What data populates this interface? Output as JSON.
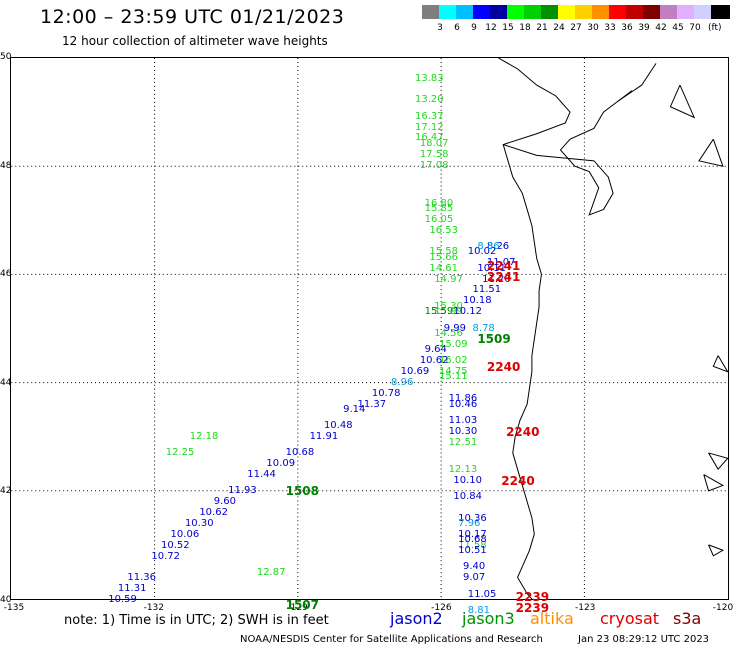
{
  "header": {
    "title": "12:00 – 23:59 UTC 01/21/2023",
    "subtitle": "12 hour collection of altimeter wave heights"
  },
  "legend": {
    "unit": "(ft)",
    "colors": [
      "#7f7f7f",
      "#00ffff",
      "#00bfff",
      "#0000ff",
      "#0000a0",
      "#00ff00",
      "#00d000",
      "#009000",
      "#ffff00",
      "#ffd000",
      "#ff9000",
      "#ff0000",
      "#c00000",
      "#800000",
      "#c080c0",
      "#e0b0ff",
      "#d0d0ff",
      "#000000"
    ],
    "labels": [
      "3",
      "6",
      "9",
      "12",
      "15",
      "18",
      "21",
      "24",
      "27",
      "30",
      "33",
      "36",
      "39",
      "42",
      "45",
      "70"
    ]
  },
  "axes": {
    "lat_labels": [
      "50",
      "48",
      "46",
      "44",
      "42",
      "40"
    ],
    "lon_labels": [
      "-135",
      "-132",
      "-129",
      "-126",
      "-123",
      "-120"
    ]
  },
  "track_colors": {
    "lightgreen": "#22d822",
    "darkgreen": "#008000",
    "blue": "#0000cc",
    "cyan": "#00a0e0",
    "red": "#dd0000"
  },
  "chart_data": {
    "type": "scatter",
    "unit": "ft",
    "lat_range": [
      40,
      50
    ],
    "lon_range": [
      -135,
      -120
    ],
    "tracks": [
      {
        "series": "jason3",
        "color": "lightgreen",
        "time_label": "1507",
        "points": [
          {
            "lon": -126.3,
            "lat": 49.6,
            "v": "13.83"
          },
          {
            "lon": -126.3,
            "lat": 49.2,
            "v": "13.20"
          },
          {
            "lon": -126.3,
            "lat": 48.9,
            "v": "16.37"
          },
          {
            "lon": -126.3,
            "lat": 48.7,
            "v": "17.12"
          },
          {
            "lon": -126.3,
            "lat": 48.5,
            "v": "16.47"
          },
          {
            "lon": -126.2,
            "lat": 48.4,
            "v": "18.07"
          },
          {
            "lon": -126.2,
            "lat": 48.2,
            "v": "17.58"
          },
          {
            "lon": -126.2,
            "lat": 48.0,
            "v": "17.08"
          },
          {
            "lon": -126.1,
            "lat": 47.3,
            "v": "16.80"
          },
          {
            "lon": -126.1,
            "lat": 47.2,
            "v": "15.85"
          },
          {
            "lon": -126.1,
            "lat": 47.0,
            "v": "16.05"
          },
          {
            "lon": -126.0,
            "lat": 46.8,
            "v": "16.53"
          },
          {
            "lon": -126.0,
            "lat": 46.4,
            "v": "15.58"
          },
          {
            "lon": -126.0,
            "lat": 46.3,
            "v": "15.66"
          },
          {
            "lon": -126.0,
            "lat": 46.1,
            "v": "14.61"
          },
          {
            "lon": -125.9,
            "lat": 45.9,
            "v": "14.97"
          },
          {
            "lon": -125.9,
            "lat": 45.4,
            "v": "15.30"
          },
          {
            "lon": -125.9,
            "lat": 45.3,
            "v": "15.99"
          },
          {
            "lon": -125.9,
            "lat": 44.9,
            "v": "14.56"
          },
          {
            "lon": -125.8,
            "lat": 44.7,
            "v": "15.09"
          },
          {
            "lon": -125.8,
            "lat": 44.4,
            "v": "16.02"
          },
          {
            "lon": -125.8,
            "lat": 44.2,
            "v": "14.75"
          },
          {
            "lon": -125.8,
            "lat": 44.1,
            "v": "15.11"
          },
          {
            "lon": -131.0,
            "lat": 43.0,
            "v": "12.18"
          },
          {
            "lon": -131.5,
            "lat": 42.7,
            "v": "12.25"
          },
          {
            "lon": -125.6,
            "lat": 42.9,
            "v": "12.51"
          },
          {
            "lon": -125.6,
            "lat": 42.4,
            "v": "12.13"
          },
          {
            "lon": -125.4,
            "lat": 41.0,
            "v": "11.58"
          },
          {
            "lon": -129.6,
            "lat": 40.5,
            "v": "12.87"
          }
        ]
      },
      {
        "series": "jason2",
        "color": "darkgreen",
        "time_label": "1508",
        "points": [
          {
            "lon": -126.1,
            "lat": 45.3,
            "v": "15.59"
          },
          {
            "lon": -126.2,
            "lat": 42.1,
            "v": ""
          }
        ]
      },
      {
        "series": "jason2",
        "color": "blue",
        "time_label": "",
        "points": [
          {
            "lon": -124.8,
            "lat": 46.5,
            "v": "8.26"
          },
          {
            "lon": -125.2,
            "lat": 46.4,
            "v": "10.02"
          },
          {
            "lon": -124.8,
            "lat": 46.2,
            "v": "11.07"
          },
          {
            "lon": -125.0,
            "lat": 46.1,
            "v": "10.11"
          },
          {
            "lon": -124.9,
            "lat": 45.9,
            "v": "11.20"
          },
          {
            "lon": -125.1,
            "lat": 45.7,
            "v": "11.51"
          },
          {
            "lon": -125.3,
            "lat": 45.5,
            "v": "10.18"
          },
          {
            "lon": -125.5,
            "lat": 45.3,
            "v": "10.12"
          },
          {
            "lon": -125.7,
            "lat": 45.0,
            "v": "9.99"
          },
          {
            "lon": -126.1,
            "lat": 44.6,
            "v": "9.64"
          },
          {
            "lon": -126.2,
            "lat": 44.4,
            "v": "10.62"
          },
          {
            "lon": -126.6,
            "lat": 44.2,
            "v": "10.69"
          },
          {
            "lon": -127.2,
            "lat": 43.8,
            "v": "10.78"
          },
          {
            "lon": -127.5,
            "lat": 43.6,
            "v": "11.37"
          },
          {
            "lon": -127.8,
            "lat": 43.5,
            "v": "9.14"
          },
          {
            "lon": -128.2,
            "lat": 43.2,
            "v": "10.48"
          },
          {
            "lon": -128.5,
            "lat": 43.0,
            "v": "11.91"
          },
          {
            "lon": -129.0,
            "lat": 42.7,
            "v": "10.68"
          },
          {
            "lon": -129.4,
            "lat": 42.5,
            "v": "10.09"
          },
          {
            "lon": -129.8,
            "lat": 42.3,
            "v": "11.44"
          },
          {
            "lon": -130.2,
            "lat": 42.0,
            "v": "11.93"
          },
          {
            "lon": -130.5,
            "lat": 41.8,
            "v": "9.60"
          },
          {
            "lon": -130.8,
            "lat": 41.6,
            "v": "10.62"
          },
          {
            "lon": -131.1,
            "lat": 41.4,
            "v": "10.30"
          },
          {
            "lon": -131.4,
            "lat": 41.2,
            "v": "10.06"
          },
          {
            "lon": -131.6,
            "lat": 41.0,
            "v": "10.52"
          },
          {
            "lon": -131.8,
            "lat": 40.8,
            "v": "10.72"
          },
          {
            "lon": -132.3,
            "lat": 40.4,
            "v": "11.36"
          },
          {
            "lon": -132.5,
            "lat": 40.2,
            "v": "11.31"
          },
          {
            "lon": -132.7,
            "lat": 40.0,
            "v": "10.59"
          },
          {
            "lon": -125.6,
            "lat": 43.7,
            "v": "11.86"
          },
          {
            "lon": -125.6,
            "lat": 43.6,
            "v": "10.46"
          },
          {
            "lon": -125.6,
            "lat": 43.3,
            "v": "11.03"
          },
          {
            "lon": -125.6,
            "lat": 43.1,
            "v": "10.30"
          },
          {
            "lon": -125.5,
            "lat": 42.2,
            "v": "10.10"
          },
          {
            "lon": -125.5,
            "lat": 41.9,
            "v": "10.84"
          },
          {
            "lon": -125.4,
            "lat": 41.5,
            "v": "10.36"
          },
          {
            "lon": -125.4,
            "lat": 41.2,
            "v": "10.17"
          },
          {
            "lon": -125.4,
            "lat": 41.1,
            "v": "10.68"
          },
          {
            "lon": -125.4,
            "lat": 40.9,
            "v": "10.51"
          },
          {
            "lon": -125.3,
            "lat": 40.6,
            "v": "9.40"
          },
          {
            "lon": -125.3,
            "lat": 40.4,
            "v": "9.07"
          },
          {
            "lon": -125.2,
            "lat": 40.1,
            "v": "11.05"
          }
        ]
      },
      {
        "series": "jason2",
        "color": "cyan",
        "time_label": "",
        "points": [
          {
            "lon": -125.0,
            "lat": 46.5,
            "v": "8.36"
          },
          {
            "lon": -125.1,
            "lat": 45.0,
            "v": "8.78"
          },
          {
            "lon": -126.8,
            "lat": 44.0,
            "v": "8.96"
          },
          {
            "lon": -125.4,
            "lat": 41.4,
            "v": "7.96"
          },
          {
            "lon": -125.2,
            "lat": 39.8,
            "v": "8.81"
          }
        ]
      }
    ],
    "time_markers": [
      {
        "label": "2241",
        "lon": -124.8,
        "lat": 46.15,
        "color": "red"
      },
      {
        "label": "2241",
        "lon": -124.8,
        "lat": 45.95,
        "color": "red"
      },
      {
        "label": "1509",
        "lon": -125.0,
        "lat": 44.8,
        "color": "darkgreen"
      },
      {
        "label": "2240",
        "lon": -124.8,
        "lat": 44.3,
        "color": "red"
      },
      {
        "label": "2240",
        "lon": -124.4,
        "lat": 43.1,
        "color": "red"
      },
      {
        "label": "2240",
        "lon": -124.5,
        "lat": 42.2,
        "color": "red"
      },
      {
        "label": "1508",
        "lon": -129.0,
        "lat": 42.0,
        "color": "darkgreen"
      },
      {
        "label": "2239",
        "lon": -124.2,
        "lat": 40.05,
        "color": "red"
      },
      {
        "label": "2239",
        "lon": -124.2,
        "lat": 39.85,
        "color": "red"
      },
      {
        "label": "1507",
        "lon": -129.0,
        "lat": 39.9,
        "color": "darkgreen"
      }
    ]
  },
  "note": "note: 1) Time is in UTC; 2) SWH is in feet",
  "satellites": [
    {
      "name": "jason2",
      "color": "#0000cc"
    },
    {
      "name": "jason3",
      "color": "#009000"
    },
    {
      "name": "altika",
      "color": "#ff9000"
    },
    {
      "name": "cryosat",
      "color": "#dd0000"
    },
    {
      "name": "s3a",
      "color": "#800000"
    }
  ],
  "footer": {
    "left": "NOAA/NESDIS Center for Satellite Applications and Research",
    "right": "Jan 23 08:29:12 UTC 2023"
  }
}
